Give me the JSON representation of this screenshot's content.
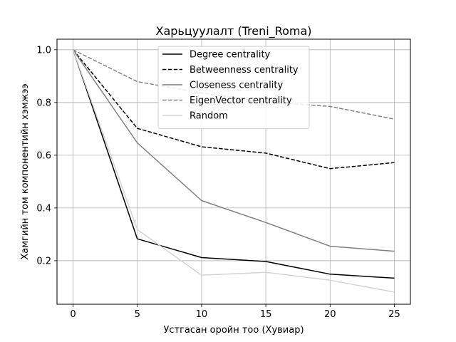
{
  "chart_data": {
    "type": "line",
    "title": "Харьцуулалт (Treni_Roma)",
    "xlabel": "Устгасан оройн тоо (Хувиар)",
    "ylabel": "Хамгийн том компонентийн хэмжээ",
    "x": [
      0,
      5,
      10,
      15,
      20,
      25
    ],
    "xlim": [
      -1.25,
      26.25
    ],
    "ylim": [
      0.035,
      1.04
    ],
    "xticks": [
      0,
      5,
      10,
      15,
      20,
      25
    ],
    "yticks": [
      0.2,
      0.4,
      0.6,
      0.8,
      1.0
    ],
    "ytick_labels": [
      "0.2",
      "0.4",
      "0.6",
      "0.8",
      "1.0"
    ],
    "grid": true,
    "legend_position": "upper-center",
    "series": [
      {
        "name": "Degree centrality",
        "color": "#000000",
        "dash": "solid",
        "values": [
          1.0,
          0.283,
          0.212,
          0.197,
          0.149,
          0.134
        ]
      },
      {
        "name": "Betweenness centrality",
        "color": "#000000",
        "dash": "dashed",
        "values": [
          1.0,
          0.702,
          0.632,
          0.608,
          0.549,
          0.572
        ]
      },
      {
        "name": "Closeness centrality",
        "color": "#808080",
        "dash": "solid",
        "values": [
          1.0,
          0.647,
          0.428,
          0.345,
          0.255,
          0.236
        ]
      },
      {
        "name": "EigenVector centrality",
        "color": "#808080",
        "dash": "dashed",
        "values": [
          1.0,
          0.879,
          0.836,
          0.803,
          0.785,
          0.737
        ]
      },
      {
        "name": "Random",
        "color": "#d3d3d3",
        "dash": "solid",
        "values": [
          1.0,
          0.318,
          0.145,
          0.156,
          0.126,
          0.081
        ]
      }
    ]
  }
}
